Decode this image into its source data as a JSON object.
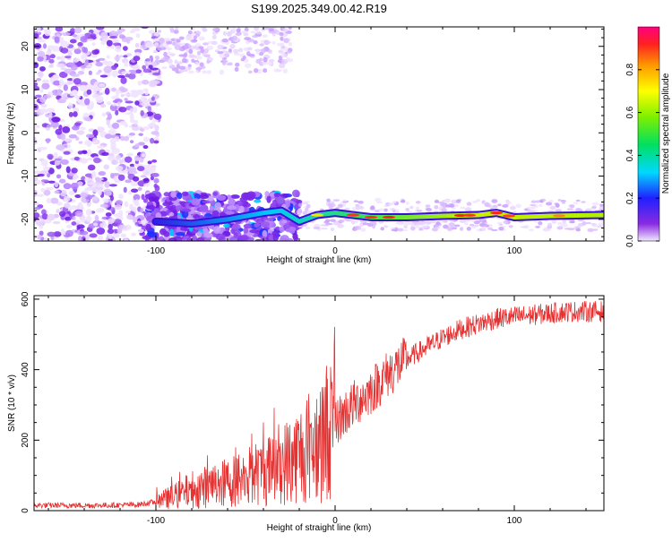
{
  "title": "S199.2025.349.00.42.R19",
  "colors": {
    "signal": "#e53333",
    "frame": "#000000",
    "spectrogram_low": "#8a2be2"
  },
  "chart_data": [
    {
      "type": "heatmap",
      "xlabel": "Height of straight line (km)",
      "ylabel": "Frequency (Hz)",
      "xlim": [
        -168,
        150
      ],
      "ylim": [
        -25,
        24.5
      ],
      "x_ticks": [
        -100,
        0,
        100
      ],
      "x_tick_labels": [
        "-100",
        "0",
        "100"
      ],
      "y_ticks": [
        -20,
        -10,
        0,
        10,
        20
      ],
      "y_tick_labels": [
        "-20",
        "-10",
        "0",
        "10",
        "20"
      ],
      "colorbar": {
        "label": "Normalized spectral amplitude",
        "range": [
          0,
          1
        ],
        "ticks": [
          0.0,
          0.2,
          0.4,
          0.6,
          0.8
        ],
        "tick_labels": [
          "0.0",
          "0.2",
          "0.4",
          "0.6",
          "0.8"
        ]
      },
      "ridge": {
        "x": [
          -100,
          -80,
          -60,
          -40,
          -30,
          -20,
          -10,
          0,
          10,
          20,
          40,
          60,
          80,
          90,
          100,
          120,
          150
        ],
        "frequency": [
          -20.5,
          -21,
          -20,
          -18.5,
          -18,
          -20.5,
          -19,
          -18.5,
          -19,
          -19.5,
          -19.5,
          -19.2,
          -19,
          -18.5,
          -19.5,
          -19.2,
          -19
        ],
        "amplitude": [
          0.25,
          0.3,
          0.3,
          0.35,
          0.35,
          0.4,
          0.45,
          0.55,
          0.6,
          0.7,
          0.75,
          0.8,
          0.95,
          0.85,
          0.9,
          0.85,
          0.8
        ]
      }
    },
    {
      "type": "line",
      "xlabel": "Height of straight line (km)",
      "ylabel": "SNR (10 * v/v)",
      "xlim": [
        -168,
        150
      ],
      "ylim": [
        0,
        610
      ],
      "x_ticks": [
        -100,
        0,
        100
      ],
      "x_tick_labels": [
        "-100",
        "0",
        "100"
      ],
      "y_ticks": [
        0,
        200,
        400,
        600
      ],
      "y_tick_labels": [
        "0",
        "200",
        "400",
        "600"
      ],
      "series": [
        {
          "x": [
            -168,
            -150,
            -130,
            -110,
            -100,
            -90,
            -80,
            -70,
            -60,
            -50,
            -40,
            -30,
            -20,
            -10,
            0,
            10,
            20,
            30,
            40,
            50,
            60,
            70,
            80,
            90,
            100,
            110,
            120,
            130,
            140,
            150
          ],
          "y": [
            15,
            15,
            15,
            17,
            25,
            40,
            60,
            70,
            80,
            95,
            110,
            130,
            160,
            200,
            250,
            300,
            340,
            390,
            430,
            460,
            490,
            515,
            530,
            545,
            550,
            555,
            560,
            565,
            565,
            565
          ]
        }
      ]
    }
  ]
}
